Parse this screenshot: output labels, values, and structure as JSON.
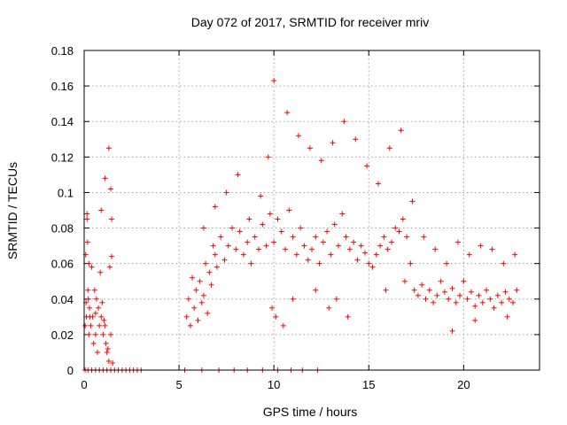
{
  "chart_data": {
    "type": "scatter",
    "title": "Day 072 of 2017, SRMTID for receiver mriv",
    "xlabel": "GPS time / hours",
    "ylabel": "SRMTID / TECUs",
    "xlim": [
      0,
      24
    ],
    "ylim": [
      0,
      0.18
    ],
    "x_ticks": [
      0,
      5,
      10,
      15,
      20
    ],
    "x_tick_labels": [
      "0",
      "5",
      "10",
      "15",
      "20"
    ],
    "y_ticks": [
      0,
      0.02,
      0.04,
      0.06,
      0.08,
      0.1,
      0.12,
      0.14,
      0.16,
      0.18
    ],
    "y_tick_labels": [
      "0",
      "0.02",
      "0.04",
      "0.06",
      "0.08",
      "0.1",
      "0.12",
      "0.14",
      "0.16",
      "0.18"
    ],
    "grid": true,
    "marker": "+",
    "color": "#ff0000",
    "series": [
      {
        "name": "SRMTID",
        "x": [
          0.05,
          0.08,
          0.1,
          0.12,
          0.15,
          0.18,
          0.2,
          0.22,
          0.25,
          0.28,
          0.3,
          0.35,
          0.4,
          0.45,
          0.5,
          0.55,
          0.6,
          0.65,
          0.7,
          0.75,
          0.8,
          0.85,
          0.9,
          0.95,
          1.0,
          1.05,
          1.1,
          1.15,
          1.2,
          1.25,
          1.3,
          1.35,
          1.4,
          1.45,
          1.5,
          0.15,
          0.25,
          0.6,
          0.9,
          1.1,
          1.3,
          1.4,
          1.45,
          5.4,
          5.5,
          5.6,
          5.7,
          5.8,
          5.9,
          6.0,
          6.1,
          6.2,
          6.3,
          6.4,
          6.5,
          6.6,
          6.7,
          6.8,
          6.9,
          7.0,
          7.2,
          7.4,
          7.6,
          7.8,
          8.0,
          8.2,
          8.4,
          8.6,
          8.8,
          9.0,
          9.2,
          9.4,
          9.6,
          9.8,
          10.0,
          10.2,
          10.4,
          10.6,
          10.8,
          11.0,
          11.2,
          11.4,
          11.6,
          11.8,
          12.0,
          12.2,
          12.4,
          12.6,
          12.8,
          13.0,
          13.2,
          13.4,
          13.6,
          13.8,
          14.0,
          14.2,
          14.4,
          14.6,
          14.8,
          15.0,
          15.2,
          15.4,
          15.6,
          15.8,
          16.0,
          16.2,
          16.4,
          16.6,
          16.8,
          17.0,
          17.2,
          17.4,
          17.6,
          17.8,
          18.0,
          18.2,
          18.4,
          18.6,
          18.8,
          19.0,
          19.2,
          19.4,
          19.6,
          19.8,
          20.0,
          20.2,
          20.4,
          20.6,
          20.8,
          21.0,
          21.2,
          21.4,
          21.6,
          21.8,
          22.0,
          22.2,
          22.4,
          22.6,
          22.8,
          6.3,
          6.9,
          7.5,
          8.1,
          8.7,
          9.3,
          9.7,
          10.0,
          10.7,
          11.3,
          11.9,
          12.5,
          13.1,
          13.7,
          14.3,
          14.9,
          15.5,
          16.1,
          16.7,
          17.3,
          17.9,
          18.5,
          19.1,
          19.7,
          20.3,
          20.9,
          21.5,
          22.1,
          22.7,
          9.9,
          10.1,
          10.5,
          11.0,
          12.2,
          12.9,
          13.3,
          13.9,
          15.9,
          16.9,
          19.4,
          20.6,
          22.3,
          0.05,
          0.2,
          0.4,
          0.6,
          0.8,
          1.0,
          1.2,
          1.4,
          1.6,
          1.8,
          2.0,
          2.2,
          2.4,
          2.6,
          2.8,
          3.0,
          5.3,
          6.2,
          7.1,
          7.9,
          8.6,
          9.4,
          10.2,
          10.9,
          11.5,
          12.3
        ],
        "y": [
          0.025,
          0.065,
          0.038,
          0.03,
          0.085,
          0.072,
          0.045,
          0.04,
          0.02,
          0.035,
          0.03,
          0.025,
          0.058,
          0.03,
          0.015,
          0.045,
          0.02,
          0.04,
          0.01,
          0.035,
          0.025,
          0.055,
          0.03,
          0.038,
          0.02,
          0.028,
          0.025,
          0.015,
          0.01,
          0.012,
          0.005,
          0.058,
          0.02,
          0.064,
          0.004,
          0.088,
          0.06,
          0.032,
          0.09,
          0.108,
          0.125,
          0.102,
          0.085,
          0.03,
          0.04,
          0.025,
          0.052,
          0.035,
          0.045,
          0.028,
          0.05,
          0.038,
          0.042,
          0.06,
          0.032,
          0.055,
          0.048,
          0.07,
          0.065,
          0.058,
          0.075,
          0.062,
          0.07,
          0.08,
          0.068,
          0.078,
          0.065,
          0.072,
          0.06,
          0.075,
          0.068,
          0.082,
          0.07,
          0.088,
          0.072,
          0.085,
          0.078,
          0.068,
          0.09,
          0.075,
          0.065,
          0.08,
          0.07,
          0.062,
          0.068,
          0.075,
          0.06,
          0.072,
          0.078,
          0.065,
          0.082,
          0.07,
          0.088,
          0.075,
          0.068,
          0.072,
          0.062,
          0.07,
          0.066,
          0.06,
          0.058,
          0.065,
          0.07,
          0.075,
          0.068,
          0.072,
          0.08,
          0.078,
          0.085,
          0.075,
          0.06,
          0.045,
          0.042,
          0.048,
          0.04,
          0.045,
          0.038,
          0.042,
          0.05,
          0.044,
          0.04,
          0.046,
          0.038,
          0.042,
          0.05,
          0.04,
          0.044,
          0.036,
          0.042,
          0.038,
          0.045,
          0.04,
          0.035,
          0.042,
          0.038,
          0.044,
          0.04,
          0.038,
          0.045,
          0.08,
          0.092,
          0.1,
          0.11,
          0.085,
          0.098,
          0.12,
          0.163,
          0.145,
          0.132,
          0.125,
          0.118,
          0.128,
          0.14,
          0.13,
          0.115,
          0.105,
          0.125,
          0.135,
          0.095,
          0.075,
          0.068,
          0.06,
          0.072,
          0.065,
          0.07,
          0.068,
          0.06,
          0.065,
          0.035,
          0.03,
          0.025,
          0.04,
          0.045,
          0.035,
          0.04,
          0.03,
          0.045,
          0.05,
          0.022,
          0.028,
          0.03,
          0.0,
          0.0,
          0.0,
          0.0,
          0.0,
          0.0,
          0.0,
          0.0,
          0.0,
          0.0,
          0.0,
          0.0,
          0.0,
          0.0,
          0.0,
          0.0,
          0.0,
          0.0,
          0.0,
          0.0,
          0.0,
          0.0,
          0.0,
          0.0,
          0.0,
          0.0
        ]
      }
    ]
  }
}
